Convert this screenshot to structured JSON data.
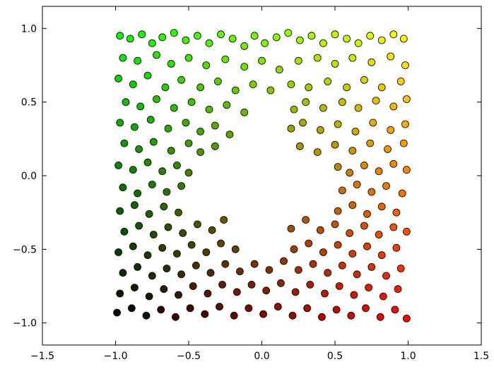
{
  "chart_data": {
    "type": "scatter",
    "title": "",
    "xlabel": "",
    "ylabel": "",
    "xlim": [
      -1.5,
      1.5
    ],
    "ylim": [
      -1.15,
      1.15
    ],
    "grid": false,
    "legend": "none",
    "xticks": [
      -1.5,
      -1.0,
      -0.5,
      0.0,
      0.5,
      1.0,
      1.5
    ],
    "xtick_labels": [
      "−1.5",
      "−1.0",
      "−0.5",
      "0.0",
      "0.5",
      "1.0",
      "1.5"
    ],
    "yticks": [
      -1.0,
      -0.5,
      0.0,
      0.5,
      1.0
    ],
    "ytick_labels": [
      "−1.0",
      "−0.5",
      "0.0",
      "0.5",
      "1.0"
    ],
    "color_rule": "red = (x+1)/2, green = (y+1)/2, blue = 0",
    "marker_edge_color": "#000000",
    "points": [
      {
        "x": -0.97,
        "y": 0.95
      },
      {
        "x": -0.9,
        "y": 0.93
      },
      {
        "x": -0.82,
        "y": 0.96
      },
      {
        "x": -0.75,
        "y": 0.9
      },
      {
        "x": -0.68,
        "y": 0.94
      },
      {
        "x": -0.6,
        "y": 0.97
      },
      {
        "x": -0.52,
        "y": 0.92
      },
      {
        "x": -0.44,
        "y": 0.95
      },
      {
        "x": -0.36,
        "y": 0.9
      },
      {
        "x": -0.28,
        "y": 0.96
      },
      {
        "x": -0.2,
        "y": 0.93
      },
      {
        "x": -0.12,
        "y": 0.88
      },
      {
        "x": -0.05,
        "y": 0.95
      },
      {
        "x": 0.02,
        "y": 0.9
      },
      {
        "x": 0.1,
        "y": 0.94
      },
      {
        "x": 0.18,
        "y": 0.97
      },
      {
        "x": 0.26,
        "y": 0.92
      },
      {
        "x": 0.34,
        "y": 0.95
      },
      {
        "x": 0.42,
        "y": 0.9
      },
      {
        "x": 0.5,
        "y": 0.96
      },
      {
        "x": 0.58,
        "y": 0.93
      },
      {
        "x": 0.66,
        "y": 0.9
      },
      {
        "x": 0.74,
        "y": 0.95
      },
      {
        "x": 0.82,
        "y": 0.92
      },
      {
        "x": 0.9,
        "y": 0.96
      },
      {
        "x": 0.97,
        "y": 0.93
      },
      {
        "x": -0.95,
        "y": 0.8
      },
      {
        "x": -0.85,
        "y": 0.78
      },
      {
        "x": -0.72,
        "y": 0.82
      },
      {
        "x": -0.62,
        "y": 0.76
      },
      {
        "x": -0.5,
        "y": 0.8
      },
      {
        "x": -0.38,
        "y": 0.75
      },
      {
        "x": -0.25,
        "y": 0.79
      },
      {
        "x": -0.12,
        "y": 0.74
      },
      {
        "x": 0.0,
        "y": 0.78
      },
      {
        "x": 0.12,
        "y": 0.72
      },
      {
        "x": 0.25,
        "y": 0.78
      },
      {
        "x": 0.38,
        "y": 0.8
      },
      {
        "x": 0.5,
        "y": 0.76
      },
      {
        "x": 0.62,
        "y": 0.8
      },
      {
        "x": 0.75,
        "y": 0.77
      },
      {
        "x": 0.88,
        "y": 0.81
      },
      {
        "x": 0.98,
        "y": 0.75
      },
      {
        "x": -0.98,
        "y": 0.66
      },
      {
        "x": -0.88,
        "y": 0.62
      },
      {
        "x": -0.78,
        "y": 0.68
      },
      {
        "x": -0.66,
        "y": 0.6
      },
      {
        "x": -0.55,
        "y": 0.65
      },
      {
        "x": -0.42,
        "y": 0.6
      },
      {
        "x": -0.3,
        "y": 0.64
      },
      {
        "x": -0.18,
        "y": 0.58
      },
      {
        "x": -0.06,
        "y": 0.62
      },
      {
        "x": 0.06,
        "y": 0.58
      },
      {
        "x": 0.2,
        "y": 0.62
      },
      {
        "x": 0.32,
        "y": 0.6
      },
      {
        "x": 0.45,
        "y": 0.64
      },
      {
        "x": 0.58,
        "y": 0.6
      },
      {
        "x": 0.7,
        "y": 0.65
      },
      {
        "x": 0.82,
        "y": 0.6
      },
      {
        "x": 0.95,
        "y": 0.64
      },
      {
        "x": -0.93,
        "y": 0.5
      },
      {
        "x": -0.83,
        "y": 0.47
      },
      {
        "x": -0.72,
        "y": 0.52
      },
      {
        "x": -0.6,
        "y": 0.46
      },
      {
        "x": -0.48,
        "y": 0.5
      },
      {
        "x": -0.36,
        "y": 0.45
      },
      {
        "x": -0.24,
        "y": 0.48
      },
      {
        "x": -0.12,
        "y": 0.43
      },
      {
        "x": 0.22,
        "y": 0.45
      },
      {
        "x": 0.3,
        "y": 0.5
      },
      {
        "x": 0.42,
        "y": 0.46
      },
      {
        "x": 0.55,
        "y": 0.5
      },
      {
        "x": 0.66,
        "y": 0.46
      },
      {
        "x": 0.78,
        "y": 0.51
      },
      {
        "x": 0.9,
        "y": 0.47
      },
      {
        "x": 0.99,
        "y": 0.52
      },
      {
        "x": -0.97,
        "y": 0.36
      },
      {
        "x": -0.87,
        "y": 0.33
      },
      {
        "x": -0.76,
        "y": 0.38
      },
      {
        "x": -0.64,
        "y": 0.32
      },
      {
        "x": -0.52,
        "y": 0.36
      },
      {
        "x": -0.42,
        "y": 0.3
      },
      {
        "x": -0.32,
        "y": 0.34
      },
      {
        "x": -0.22,
        "y": 0.28
      },
      {
        "x": 0.2,
        "y": 0.32
      },
      {
        "x": 0.28,
        "y": 0.36
      },
      {
        "x": 0.4,
        "y": 0.31
      },
      {
        "x": 0.52,
        "y": 0.35
      },
      {
        "x": 0.64,
        "y": 0.3
      },
      {
        "x": 0.76,
        "y": 0.36
      },
      {
        "x": 0.88,
        "y": 0.31
      },
      {
        "x": 0.98,
        "y": 0.35
      },
      {
        "x": -0.94,
        "y": 0.22
      },
      {
        "x": -0.84,
        "y": 0.18
      },
      {
        "x": -0.74,
        "y": 0.23
      },
      {
        "x": -0.62,
        "y": 0.17
      },
      {
        "x": -0.5,
        "y": 0.22
      },
      {
        "x": -0.42,
        "y": 0.16
      },
      {
        "x": -0.32,
        "y": 0.2
      },
      {
        "x": 0.26,
        "y": 0.2
      },
      {
        "x": 0.38,
        "y": 0.16
      },
      {
        "x": 0.5,
        "y": 0.21
      },
      {
        "x": 0.62,
        "y": 0.17
      },
      {
        "x": 0.74,
        "y": 0.22
      },
      {
        "x": 0.86,
        "y": 0.18
      },
      {
        "x": 0.97,
        "y": 0.22
      },
      {
        "x": -0.98,
        "y": 0.07
      },
      {
        "x": -0.88,
        "y": 0.04
      },
      {
        "x": -0.78,
        "y": 0.09
      },
      {
        "x": -0.68,
        "y": 0.03
      },
      {
        "x": -0.58,
        "y": 0.07
      },
      {
        "x": -0.5,
        "y": 0.02
      },
      {
        "x": 0.52,
        "y": 0.06
      },
      {
        "x": 0.6,
        "y": 0.02
      },
      {
        "x": 0.7,
        "y": 0.07
      },
      {
        "x": 0.8,
        "y": 0.03
      },
      {
        "x": 0.9,
        "y": 0.08
      },
      {
        "x": 0.99,
        "y": 0.04
      },
      {
        "x": -0.95,
        "y": -0.08
      },
      {
        "x": -0.85,
        "y": -0.12
      },
      {
        "x": -0.75,
        "y": -0.06
      },
      {
        "x": -0.65,
        "y": -0.11
      },
      {
        "x": -0.55,
        "y": -0.07
      },
      {
        "x": 0.55,
        "y": -0.1
      },
      {
        "x": 0.65,
        "y": -0.06
      },
      {
        "x": 0.75,
        "y": -0.11
      },
      {
        "x": 0.85,
        "y": -0.07
      },
      {
        "x": 0.96,
        "y": -0.12
      },
      {
        "x": -0.97,
        "y": -0.24
      },
      {
        "x": -0.87,
        "y": -0.2
      },
      {
        "x": -0.77,
        "y": -0.26
      },
      {
        "x": -0.67,
        "y": -0.21
      },
      {
        "x": -0.57,
        "y": -0.25
      },
      {
        "x": 0.52,
        "y": -0.24
      },
      {
        "x": 0.62,
        "y": -0.2
      },
      {
        "x": 0.72,
        "y": -0.26
      },
      {
        "x": 0.82,
        "y": -0.21
      },
      {
        "x": 0.92,
        "y": -0.25
      },
      {
        "x": -0.94,
        "y": -0.38
      },
      {
        "x": -0.84,
        "y": -0.34
      },
      {
        "x": -0.74,
        "y": -0.4
      },
      {
        "x": -0.64,
        "y": -0.35
      },
      {
        "x": -0.54,
        "y": -0.39
      },
      {
        "x": -0.44,
        "y": -0.33
      },
      {
        "x": -0.34,
        "y": -0.37
      },
      {
        "x": -0.26,
        "y": -0.3
      },
      {
        "x": 0.2,
        "y": -0.36
      },
      {
        "x": 0.3,
        "y": -0.3
      },
      {
        "x": 0.4,
        "y": -0.37
      },
      {
        "x": 0.5,
        "y": -0.33
      },
      {
        "x": 0.6,
        "y": -0.39
      },
      {
        "x": 0.7,
        "y": -0.34
      },
      {
        "x": 0.8,
        "y": -0.4
      },
      {
        "x": 0.9,
        "y": -0.35
      },
      {
        "x": 0.99,
        "y": -0.38
      },
      {
        "x": -0.98,
        "y": -0.52
      },
      {
        "x": -0.88,
        "y": -0.48
      },
      {
        "x": -0.78,
        "y": -0.54
      },
      {
        "x": -0.68,
        "y": -0.49
      },
      {
        "x": -0.58,
        "y": -0.53
      },
      {
        "x": -0.48,
        "y": -0.47
      },
      {
        "x": -0.38,
        "y": -0.52
      },
      {
        "x": -0.28,
        "y": -0.46
      },
      {
        "x": -0.18,
        "y": -0.5
      },
      {
        "x": 0.22,
        "y": -0.5
      },
      {
        "x": 0.32,
        "y": -0.46
      },
      {
        "x": 0.42,
        "y": -0.52
      },
      {
        "x": 0.52,
        "y": -0.47
      },
      {
        "x": 0.62,
        "y": -0.53
      },
      {
        "x": 0.72,
        "y": -0.48
      },
      {
        "x": 0.82,
        "y": -0.54
      },
      {
        "x": 0.92,
        "y": -0.49
      },
      {
        "x": -0.95,
        "y": -0.66
      },
      {
        "x": -0.85,
        "y": -0.62
      },
      {
        "x": -0.75,
        "y": -0.68
      },
      {
        "x": -0.65,
        "y": -0.63
      },
      {
        "x": -0.55,
        "y": -0.67
      },
      {
        "x": -0.45,
        "y": -0.61
      },
      {
        "x": -0.35,
        "y": -0.66
      },
      {
        "x": -0.25,
        "y": -0.6
      },
      {
        "x": -0.15,
        "y": -0.65
      },
      {
        "x": -0.05,
        "y": -0.6
      },
      {
        "x": 0.05,
        "y": -0.64
      },
      {
        "x": 0.15,
        "y": -0.58
      },
      {
        "x": 0.25,
        "y": -0.64
      },
      {
        "x": 0.35,
        "y": -0.6
      },
      {
        "x": 0.45,
        "y": -0.66
      },
      {
        "x": 0.55,
        "y": -0.61
      },
      {
        "x": 0.65,
        "y": -0.67
      },
      {
        "x": 0.75,
        "y": -0.62
      },
      {
        "x": 0.85,
        "y": -0.68
      },
      {
        "x": 0.95,
        "y": -0.63
      },
      {
        "x": -0.97,
        "y": -0.8
      },
      {
        "x": -0.87,
        "y": -0.76
      },
      {
        "x": -0.77,
        "y": -0.82
      },
      {
        "x": -0.67,
        "y": -0.77
      },
      {
        "x": -0.57,
        "y": -0.81
      },
      {
        "x": -0.47,
        "y": -0.75
      },
      {
        "x": -0.37,
        "y": -0.8
      },
      {
        "x": -0.27,
        "y": -0.74
      },
      {
        "x": -0.17,
        "y": -0.79
      },
      {
        "x": -0.07,
        "y": -0.74
      },
      {
        "x": 0.03,
        "y": -0.78
      },
      {
        "x": 0.13,
        "y": -0.73
      },
      {
        "x": 0.23,
        "y": -0.79
      },
      {
        "x": 0.33,
        "y": -0.74
      },
      {
        "x": 0.43,
        "y": -0.8
      },
      {
        "x": 0.53,
        "y": -0.75
      },
      {
        "x": 0.63,
        "y": -0.81
      },
      {
        "x": 0.73,
        "y": -0.76
      },
      {
        "x": 0.83,
        "y": -0.82
      },
      {
        "x": 0.93,
        "y": -0.77
      },
      {
        "x": -0.99,
        "y": -0.93
      },
      {
        "x": -0.89,
        "y": -0.9
      },
      {
        "x": -0.79,
        "y": -0.95
      },
      {
        "x": -0.69,
        "y": -0.91
      },
      {
        "x": -0.59,
        "y": -0.96
      },
      {
        "x": -0.49,
        "y": -0.9
      },
      {
        "x": -0.39,
        "y": -0.94
      },
      {
        "x": -0.29,
        "y": -0.89
      },
      {
        "x": -0.19,
        "y": -0.95
      },
      {
        "x": -0.09,
        "y": -0.9
      },
      {
        "x": 0.01,
        "y": -0.94
      },
      {
        "x": 0.11,
        "y": -0.89
      },
      {
        "x": 0.21,
        "y": -0.95
      },
      {
        "x": 0.31,
        "y": -0.9
      },
      {
        "x": 0.41,
        "y": -0.96
      },
      {
        "x": 0.51,
        "y": -0.91
      },
      {
        "x": 0.61,
        "y": -0.95
      },
      {
        "x": 0.71,
        "y": -0.9
      },
      {
        "x": 0.81,
        "y": -0.96
      },
      {
        "x": 0.91,
        "y": -0.91
      },
      {
        "x": 0.99,
        "y": -0.97
      }
    ]
  }
}
